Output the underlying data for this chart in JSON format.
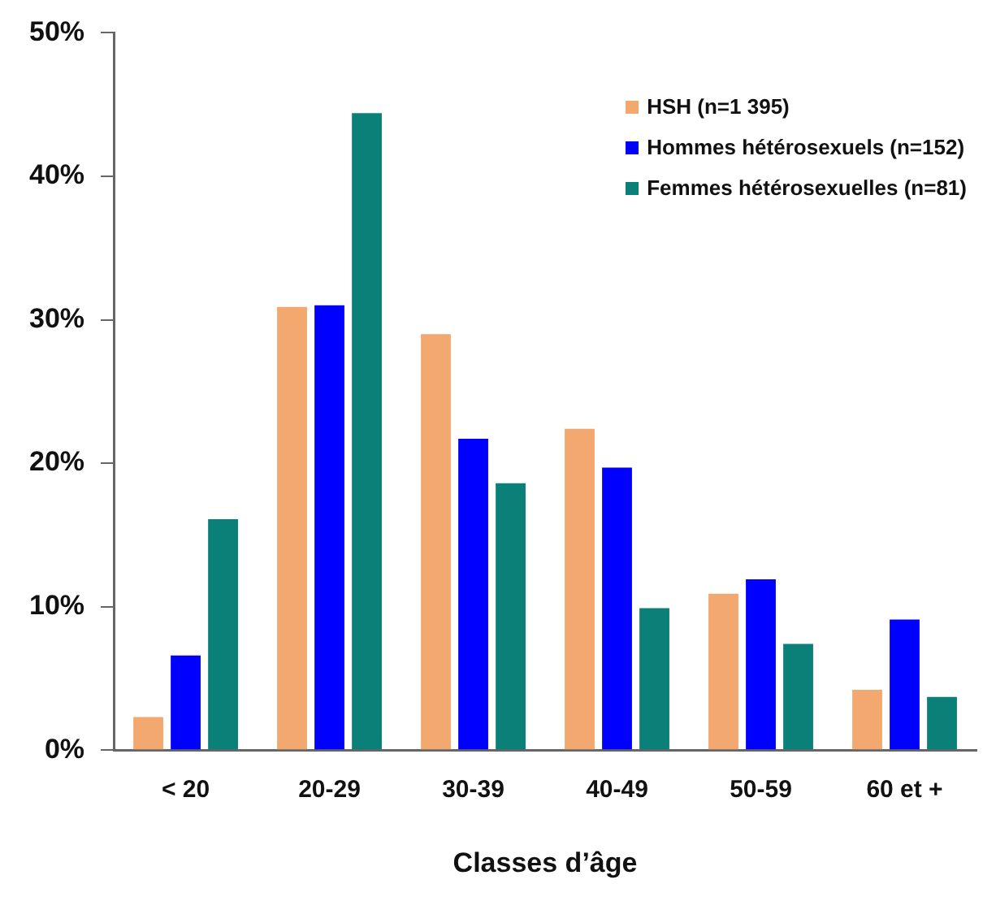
{
  "chart_data": {
    "type": "bar",
    "xlabel": "Classes d’âge",
    "categories": [
      "< 20",
      "20-29",
      "30-39",
      "40-49",
      "50-59",
      "60 et +"
    ],
    "series": [
      {
        "name": "HSH (n=1 395)",
        "color": "#f2a86e",
        "values": [
          2.3,
          30.9,
          29.0,
          22.4,
          10.9,
          4.2
        ]
      },
      {
        "name": "Hommes hétérosexuels (n=152)",
        "color": "#0000ff",
        "values": [
          6.6,
          31.0,
          21.7,
          19.7,
          11.9,
          9.1
        ]
      },
      {
        "name": "Femmes hétérosexuelles (n=81)",
        "color": "#0a8078",
        "values": [
          16.1,
          44.4,
          18.6,
          9.9,
          7.4,
          3.7
        ]
      }
    ],
    "ylim": [
      0,
      50
    ],
    "yticks": [
      {
        "value": 0,
        "label": "0%"
      },
      {
        "value": 10,
        "label": "10%"
      },
      {
        "value": 20,
        "label": "20%"
      },
      {
        "value": 30,
        "label": "30%"
      },
      {
        "value": 40,
        "label": "40%"
      },
      {
        "value": 50,
        "label": "50%"
      }
    ],
    "grid": false,
    "legend": "top right"
  }
}
